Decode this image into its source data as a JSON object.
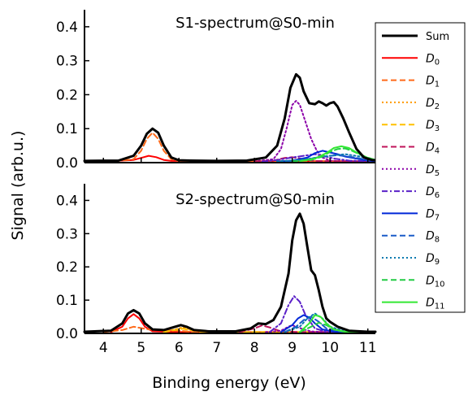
{
  "chart_data": {
    "type": "line",
    "ylabel": "Signal (arb.u.)",
    "xlabel": "Binding energy (eV)",
    "xlim": [
      3.5,
      11.2
    ],
    "xticks": [
      4,
      5,
      6,
      7,
      8,
      9,
      10,
      11
    ],
    "ylim": [
      0,
      0.45
    ],
    "yticks": [
      0.0,
      0.1,
      0.2,
      0.3,
      0.4
    ],
    "grid": false,
    "legend_position": "right, spanning both panels",
    "legend": [
      {
        "key": "Sum",
        "label": "Sum",
        "color": "#000000",
        "dash": "solid",
        "width": 3
      },
      {
        "key": "D0",
        "label": "D",
        "sub": "0",
        "color": "#ff0000",
        "dash": "solid",
        "width": 2
      },
      {
        "key": "D1",
        "label": "D",
        "sub": "1",
        "color": "#ff6a1a",
        "dash": "dashed",
        "width": 2
      },
      {
        "key": "D2",
        "label": "D",
        "sub": "2",
        "color": "#ff9900",
        "dash": "dotted",
        "width": 2
      },
      {
        "key": "D3",
        "label": "D",
        "sub": "3",
        "color": "#ffc000",
        "dash": "dashed",
        "width": 2
      },
      {
        "key": "D4",
        "label": "D",
        "sub": "4",
        "color": "#c0145a",
        "dash": "dashed",
        "width": 2
      },
      {
        "key": "D5",
        "label": "D",
        "sub": "5",
        "color": "#8b00a8",
        "dash": "dotted",
        "width": 2
      },
      {
        "key": "D6",
        "label": "D",
        "sub": "6",
        "color": "#5a20c8",
        "dash": "dashdot",
        "width": 2
      },
      {
        "key": "D7",
        "label": "D",
        "sub": "7",
        "color": "#0028d8",
        "dash": "solid",
        "width": 2
      },
      {
        "key": "D8",
        "label": "D",
        "sub": "8",
        "color": "#1a5cc8",
        "dash": "dashed",
        "width": 2
      },
      {
        "key": "D9",
        "label": "D",
        "sub": "9",
        "color": "#0a7ab0",
        "dash": "dotted",
        "width": 2
      },
      {
        "key": "D10",
        "label": "D",
        "sub": "10",
        "color": "#22cc44",
        "dash": "dashed",
        "width": 2
      },
      {
        "key": "D11",
        "label": "D",
        "sub": "11",
        "color": "#33e833",
        "dash": "solid",
        "width": 2
      }
    ],
    "panels": [
      {
        "title": "S1-spectrum@S0-min",
        "series": [
          {
            "key": "D0",
            "x": [
              4.3,
              4.8,
              5.0,
              5.2,
              5.4,
              5.6,
              5.8,
              6.2,
              7.0,
              8.0,
              9.0,
              10.0,
              11.2
            ],
            "y": [
              0.005,
              0.008,
              0.014,
              0.02,
              0.016,
              0.008,
              0.005,
              0.005,
              0.004,
              0.004,
              0.004,
              0.004,
              0.004
            ]
          },
          {
            "key": "D1",
            "x": [
              4.3,
              4.8,
              5.0,
              5.15,
              5.3,
              5.45,
              5.6,
              5.8,
              6.0,
              6.5,
              8.0,
              11.2
            ],
            "y": [
              0.004,
              0.01,
              0.035,
              0.07,
              0.088,
              0.07,
              0.035,
              0.01,
              0.005,
              0.004,
              0.004,
              0.004
            ]
          },
          {
            "key": "D5",
            "x": [
              8.0,
              8.5,
              8.7,
              8.85,
              9.0,
              9.1,
              9.2,
              9.35,
              9.5,
              9.65,
              9.8,
              10.0,
              10.3,
              11.2
            ],
            "y": [
              0.004,
              0.01,
              0.04,
              0.1,
              0.17,
              0.182,
              0.17,
              0.12,
              0.07,
              0.035,
              0.015,
              0.006,
              0.004,
              0.004
            ]
          },
          {
            "key": "D4",
            "x": [
              8.0,
              8.5,
              8.8,
              9.0,
              9.2,
              9.4,
              9.6,
              10.0,
              11.2
            ],
            "y": [
              0.003,
              0.006,
              0.014,
              0.016,
              0.012,
              0.008,
              0.005,
              0.004,
              0.003
            ]
          },
          {
            "key": "D6",
            "x": [
              8.2,
              8.6,
              9.0,
              9.3,
              9.6,
              9.8,
              10.1,
              10.5,
              11.2
            ],
            "y": [
              0.003,
              0.008,
              0.015,
              0.02,
              0.025,
              0.02,
              0.012,
              0.006,
              0.004
            ]
          },
          {
            "key": "D7",
            "x": [
              8.6,
              9.0,
              9.4,
              9.6,
              9.8,
              10.0,
              10.2,
              10.4,
              10.7,
              11.0,
              11.2
            ],
            "y": [
              0.003,
              0.006,
              0.015,
              0.028,
              0.035,
              0.03,
              0.025,
              0.018,
              0.012,
              0.006,
              0.004
            ]
          },
          {
            "key": "D8",
            "x": [
              8.6,
              9.0,
              9.4,
              9.8,
              10.2,
              10.6,
              11.0,
              11.2
            ],
            "y": [
              0.003,
              0.005,
              0.01,
              0.018,
              0.022,
              0.016,
              0.008,
              0.005
            ]
          },
          {
            "key": "D9",
            "x": [
              8.6,
              9.2,
              9.6,
              10.0,
              10.4,
              10.8,
              11.2
            ],
            "y": [
              0.004,
              0.008,
              0.014,
              0.02,
              0.025,
              0.018,
              0.008
            ]
          },
          {
            "key": "D10",
            "x": [
              9.0,
              9.5,
              9.8,
              10.0,
              10.2,
              10.4,
              10.6,
              10.9,
              11.2
            ],
            "y": [
              0.004,
              0.008,
              0.018,
              0.032,
              0.04,
              0.042,
              0.034,
              0.018,
              0.008
            ]
          },
          {
            "key": "D11",
            "x": [
              9.2,
              9.6,
              9.9,
              10.1,
              10.3,
              10.5,
              10.7,
              11.0,
              11.2
            ],
            "y": [
              0.004,
              0.012,
              0.028,
              0.043,
              0.048,
              0.043,
              0.03,
              0.014,
              0.008
            ]
          },
          {
            "key": "Sum",
            "x": [
              3.5,
              4.4,
              4.8,
              5.0,
              5.15,
              5.3,
              5.45,
              5.6,
              5.8,
              6.0,
              6.3,
              7.0,
              7.8,
              8.3,
              8.6,
              8.8,
              8.95,
              9.1,
              9.2,
              9.3,
              9.45,
              9.6,
              9.7,
              9.8,
              9.9,
              10.0,
              10.1,
              10.2,
              10.35,
              10.5,
              10.7,
              10.9,
              11.1,
              11.2
            ],
            "y": [
              0.005,
              0.006,
              0.02,
              0.05,
              0.085,
              0.1,
              0.088,
              0.05,
              0.015,
              0.007,
              0.006,
              0.005,
              0.006,
              0.015,
              0.05,
              0.13,
              0.22,
              0.26,
              0.25,
              0.21,
              0.175,
              0.172,
              0.18,
              0.175,
              0.168,
              0.175,
              0.178,
              0.165,
              0.13,
              0.09,
              0.04,
              0.015,
              0.008,
              0.007
            ]
          }
        ]
      },
      {
        "title": "S2-spectrum@S0-min",
        "series": [
          {
            "key": "D0",
            "x": [
              4.2,
              4.5,
              4.65,
              4.8,
              4.95,
              5.1,
              5.3,
              6.0,
              11.2
            ],
            "y": [
              0.004,
              0.02,
              0.045,
              0.058,
              0.045,
              0.02,
              0.006,
              0.004,
              0.004
            ]
          },
          {
            "key": "D1",
            "x": [
              4.0,
              4.5,
              4.8,
              5.2,
              5.6,
              6.0,
              6.4,
              11.2
            ],
            "y": [
              0.004,
              0.01,
              0.02,
              0.012,
              0.01,
              0.008,
              0.004,
              0.004
            ]
          },
          {
            "key": "D2",
            "x": [
              5.6,
              5.9,
              6.1,
              6.3,
              6.6,
              11.2
            ],
            "y": [
              0.004,
              0.012,
              0.018,
              0.012,
              0.004,
              0.004
            ]
          },
          {
            "key": "D3",
            "x": [
              5.6,
              5.9,
              6.1,
              6.35,
              6.7,
              11.2
            ],
            "y": [
              0.004,
              0.01,
              0.014,
              0.009,
              0.004,
              0.004
            ]
          },
          {
            "key": "D4",
            "x": [
              7.6,
              8.0,
              8.2,
              8.4,
              8.7,
              9.2,
              11.2
            ],
            "y": [
              0.004,
              0.015,
              0.024,
              0.018,
              0.006,
              0.004,
              0.004
            ]
          },
          {
            "key": "D5",
            "x": [
              8.3,
              8.7,
              8.9,
              9.0,
              9.1,
              9.3,
              9.5,
              9.8,
              11.2
            ],
            "y": [
              0.004,
              0.008,
              0.02,
              0.025,
              0.02,
              0.012,
              0.006,
              0.004,
              0.004
            ]
          },
          {
            "key": "D6",
            "x": [
              8.4,
              8.7,
              8.9,
              9.05,
              9.2,
              9.35,
              9.6,
              9.9,
              11.2
            ],
            "y": [
              0.004,
              0.03,
              0.085,
              0.112,
              0.095,
              0.055,
              0.015,
              0.005,
              0.004
            ]
          },
          {
            "key": "D7",
            "x": [
              8.7,
              9.0,
              9.15,
              9.3,
              9.45,
              9.6,
              9.8,
              10.2,
              11.2
            ],
            "y": [
              0.004,
              0.025,
              0.045,
              0.055,
              0.048,
              0.03,
              0.012,
              0.004,
              0.004
            ]
          },
          {
            "key": "D8",
            "x": [
              8.8,
              9.1,
              9.3,
              9.5,
              9.7,
              9.9,
              10.3,
              11.2
            ],
            "y": [
              0.004,
              0.02,
              0.04,
              0.05,
              0.035,
              0.015,
              0.005,
              0.004
            ]
          },
          {
            "key": "D9",
            "x": [
              8.8,
              9.2,
              9.4,
              9.6,
              9.8,
              10.0,
              10.4,
              11.2
            ],
            "y": [
              0.004,
              0.02,
              0.045,
              0.06,
              0.045,
              0.02,
              0.006,
              0.004
            ]
          },
          {
            "key": "D10",
            "x": [
              9.2,
              9.5,
              9.7,
              9.9,
              10.1,
              10.4,
              11.2
            ],
            "y": [
              0.004,
              0.02,
              0.032,
              0.025,
              0.012,
              0.005,
              0.004
            ]
          },
          {
            "key": "D11",
            "x": [
              9.2,
              9.45,
              9.6,
              9.75,
              9.9,
              10.1,
              10.4,
              11.2
            ],
            "y": [
              0.004,
              0.03,
              0.055,
              0.05,
              0.03,
              0.012,
              0.005,
              0.004
            ]
          },
          {
            "key": "Sum",
            "x": [
              3.5,
              4.2,
              4.5,
              4.65,
              4.8,
              4.95,
              5.1,
              5.3,
              5.6,
              5.9,
              6.05,
              6.2,
              6.4,
              6.8,
              7.5,
              7.9,
              8.1,
              8.3,
              8.5,
              8.7,
              8.9,
              9.0,
              9.1,
              9.2,
              9.3,
              9.4,
              9.5,
              9.6,
              9.7,
              9.8,
              9.9,
              10.0,
              10.2,
              10.5,
              11.0,
              11.2
            ],
            "y": [
              0.005,
              0.008,
              0.03,
              0.06,
              0.07,
              0.06,
              0.03,
              0.012,
              0.01,
              0.02,
              0.025,
              0.02,
              0.01,
              0.006,
              0.006,
              0.015,
              0.03,
              0.028,
              0.04,
              0.08,
              0.18,
              0.28,
              0.34,
              0.36,
              0.33,
              0.26,
              0.19,
              0.175,
              0.13,
              0.08,
              0.045,
              0.035,
              0.02,
              0.008,
              0.005,
              0.005
            ]
          }
        ]
      }
    ]
  }
}
